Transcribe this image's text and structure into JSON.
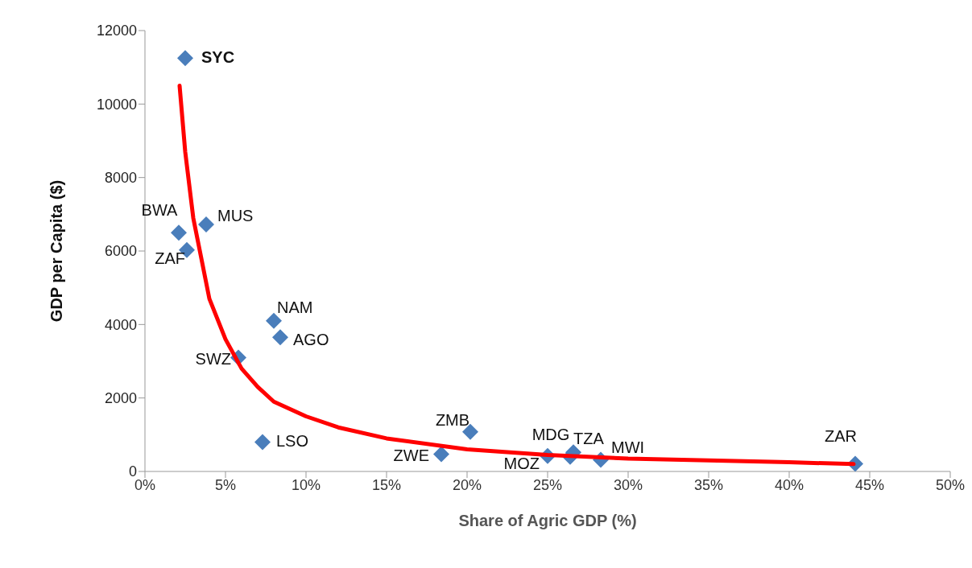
{
  "chart_data": {
    "type": "scatter",
    "xlabel": "Share of Agric GDP (%)",
    "ylabel": "GDP per Capita ($)",
    "xlim": [
      0,
      50
    ],
    "ylim": [
      0,
      12000
    ],
    "xticks": [
      {
        "value": 0,
        "label": "0%"
      },
      {
        "value": 5,
        "label": "5%"
      },
      {
        "value": 10,
        "label": "10%"
      },
      {
        "value": 15,
        "label": "15%"
      },
      {
        "value": 20,
        "label": "20%"
      },
      {
        "value": 25,
        "label": "25%"
      },
      {
        "value": 30,
        "label": "30%"
      },
      {
        "value": 35,
        "label": "35%"
      },
      {
        "value": 40,
        "label": "40%"
      },
      {
        "value": 45,
        "label": "45%"
      },
      {
        "value": 50,
        "label": "50%"
      }
    ],
    "yticks": [
      0,
      2000,
      4000,
      6000,
      8000,
      10000,
      12000
    ],
    "grid": false,
    "legend": false,
    "marker": "diamond",
    "series": [
      {
        "color": "#4a7ebb",
        "x": [
          2.5,
          2.1,
          3.8,
          2.6,
          8.0,
          8.4,
          5.8,
          7.3,
          18.4,
          20.2,
          25.0,
          26.4,
          26.6,
          28.3,
          44.1
        ],
        "values": [
          11250,
          6500,
          6720,
          6030,
          4100,
          3650,
          3100,
          800,
          470,
          1080,
          420,
          400,
          520,
          320,
          210
        ]
      },
      {
        "type": "line",
        "color": "#ff0000",
        "marker": "none",
        "line_style": "solid",
        "x": [
          2.15,
          2.5,
          3,
          4,
          5,
          6,
          7,
          8,
          10,
          12,
          15,
          20,
          25,
          30,
          35,
          40,
          44
        ],
        "values": [
          10500,
          8700,
          6900,
          4700,
          3600,
          2800,
          2300,
          1900,
          1500,
          1200,
          900,
          600,
          450,
          350,
          300,
          250,
          200
        ]
      }
    ],
    "annotations": [
      {
        "text": "SYC",
        "x": 2.5,
        "y": 11250
      },
      {
        "text": "BWA",
        "x": 2.1,
        "y": 6500
      },
      {
        "text": "MUS",
        "x": 3.8,
        "y": 6720
      },
      {
        "text": "ZAF",
        "x": 2.6,
        "y": 6030
      },
      {
        "text": "NAM",
        "x": 8.0,
        "y": 4100
      },
      {
        "text": "AGO",
        "x": 8.4,
        "y": 3650
      },
      {
        "text": "SWZ",
        "x": 5.8,
        "y": 3100
      },
      {
        "text": "LSO",
        "x": 7.3,
        "y": 800
      },
      {
        "text": "ZWE",
        "x": 18.4,
        "y": 470
      },
      {
        "text": "ZMB",
        "x": 20.2,
        "y": 1080
      },
      {
        "text": "MOZ",
        "x": 25.0,
        "y": 420
      },
      {
        "text": "MDG",
        "x": 26.4,
        "y": 400
      },
      {
        "text": "TZA",
        "x": 26.6,
        "y": 520
      },
      {
        "text": "MWI",
        "x": 28.3,
        "y": 320
      },
      {
        "text": "ZAR",
        "x": 44.1,
        "y": 210
      }
    ]
  }
}
